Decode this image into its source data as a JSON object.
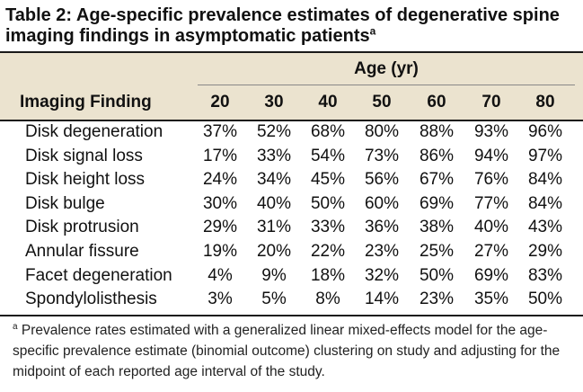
{
  "title": {
    "text": "Table 2: Age-specific prevalence estimates of degenerative spine imaging findings in asymptomatic patients",
    "marker": "a"
  },
  "table": {
    "group_header": "Age (yr)",
    "row_header": "Imaging Finding",
    "columns": [
      "20",
      "30",
      "40",
      "50",
      "60",
      "70",
      "80"
    ],
    "rows": [
      {
        "label": "Disk degeneration",
        "values": [
          "37%",
          "52%",
          "68%",
          "80%",
          "88%",
          "93%",
          "96%"
        ]
      },
      {
        "label": "Disk signal loss",
        "values": [
          "17%",
          "33%",
          "54%",
          "73%",
          "86%",
          "94%",
          "97%"
        ]
      },
      {
        "label": "Disk height loss",
        "values": [
          "24%",
          "34%",
          "45%",
          "56%",
          "67%",
          "76%",
          "84%"
        ]
      },
      {
        "label": "Disk bulge",
        "values": [
          "30%",
          "40%",
          "50%",
          "60%",
          "69%",
          "77%",
          "84%"
        ]
      },
      {
        "label": "Disk protrusion",
        "values": [
          "29%",
          "31%",
          "33%",
          "36%",
          "38%",
          "40%",
          "43%"
        ]
      },
      {
        "label": "Annular fissure",
        "values": [
          "19%",
          "20%",
          "22%",
          "23%",
          "25%",
          "27%",
          "29%"
        ]
      },
      {
        "label": "Facet degeneration",
        "values": [
          "4%",
          "9%",
          "18%",
          "32%",
          "50%",
          "69%",
          "83%"
        ]
      },
      {
        "label": "Spondylolisthesis",
        "values": [
          "3%",
          "5%",
          "8%",
          "14%",
          "23%",
          "35%",
          "50%"
        ]
      }
    ]
  },
  "footnote": {
    "marker": "a",
    "text": "Prevalence rates estimated with a generalized linear mixed-effects model for the age-specific prevalence estimate (binomial outcome) clustering on study and adjusting for the midpoint of each reported age interval of the study."
  },
  "colors": {
    "header_band": "#ebe3cf",
    "rule": "#1a1a1a",
    "text": "#111111"
  }
}
